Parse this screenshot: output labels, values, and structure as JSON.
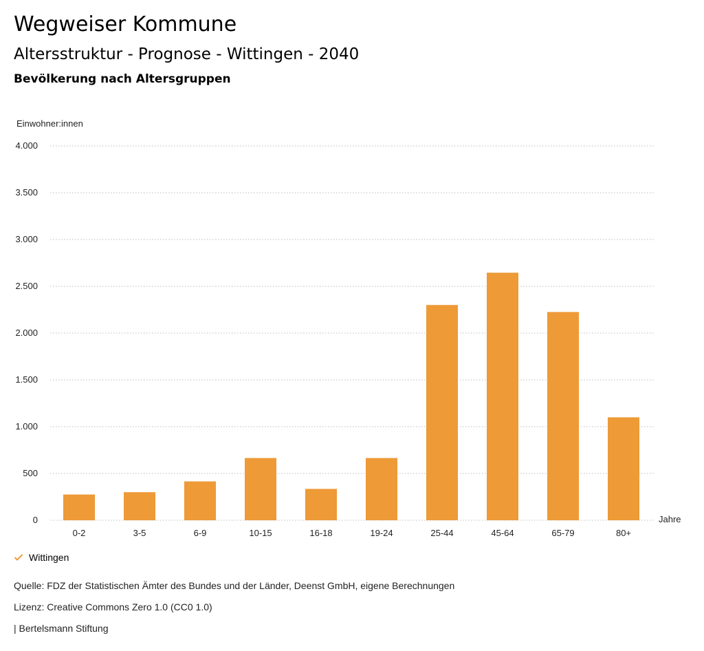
{
  "header": {
    "title": "Wegweiser Kommune",
    "subtitle": "Altersstruktur - Prognose - Wittingen - 2040",
    "subheading": "Bevölkerung nach Altersgruppen"
  },
  "legend": {
    "series_label": "Wittingen",
    "check_icon": "check-icon"
  },
  "footer": {
    "source": "Quelle: FDZ der Statistischen Ämter des Bundes und der Länder, Deenst GmbH, eigene Berechnungen",
    "license": "Lizenz: Creative Commons Zero 1.0 (CC0 1.0)",
    "publisher": "| Bertelsmann Stiftung"
  },
  "colors": {
    "bar": "#ee9a37",
    "grid": "#bdbdbd",
    "check": "#ee9a37"
  },
  "chart_data": {
    "type": "bar",
    "ylabel": "Einwohner:innen",
    "xlabel": "Jahre",
    "categories": [
      "0-2",
      "3-5",
      "6-9",
      "10-15",
      "16-18",
      "19-24",
      "25-44",
      "45-64",
      "65-79",
      "80+"
    ],
    "series": [
      {
        "name": "Wittingen",
        "values": [
          275,
          300,
          415,
          665,
          335,
          665,
          2300,
          2645,
          2225,
          1100
        ]
      }
    ],
    "ylim": [
      0,
      4000
    ],
    "yticks": [
      0,
      500,
      1000,
      1500,
      2000,
      2500,
      3000,
      3500,
      4000
    ],
    "ytick_labels": [
      "0",
      "500",
      "1.000",
      "1.500",
      "2.000",
      "2.500",
      "3.000",
      "3.500",
      "4.000"
    ],
    "grid": true,
    "legend_position": "bottom-left"
  }
}
